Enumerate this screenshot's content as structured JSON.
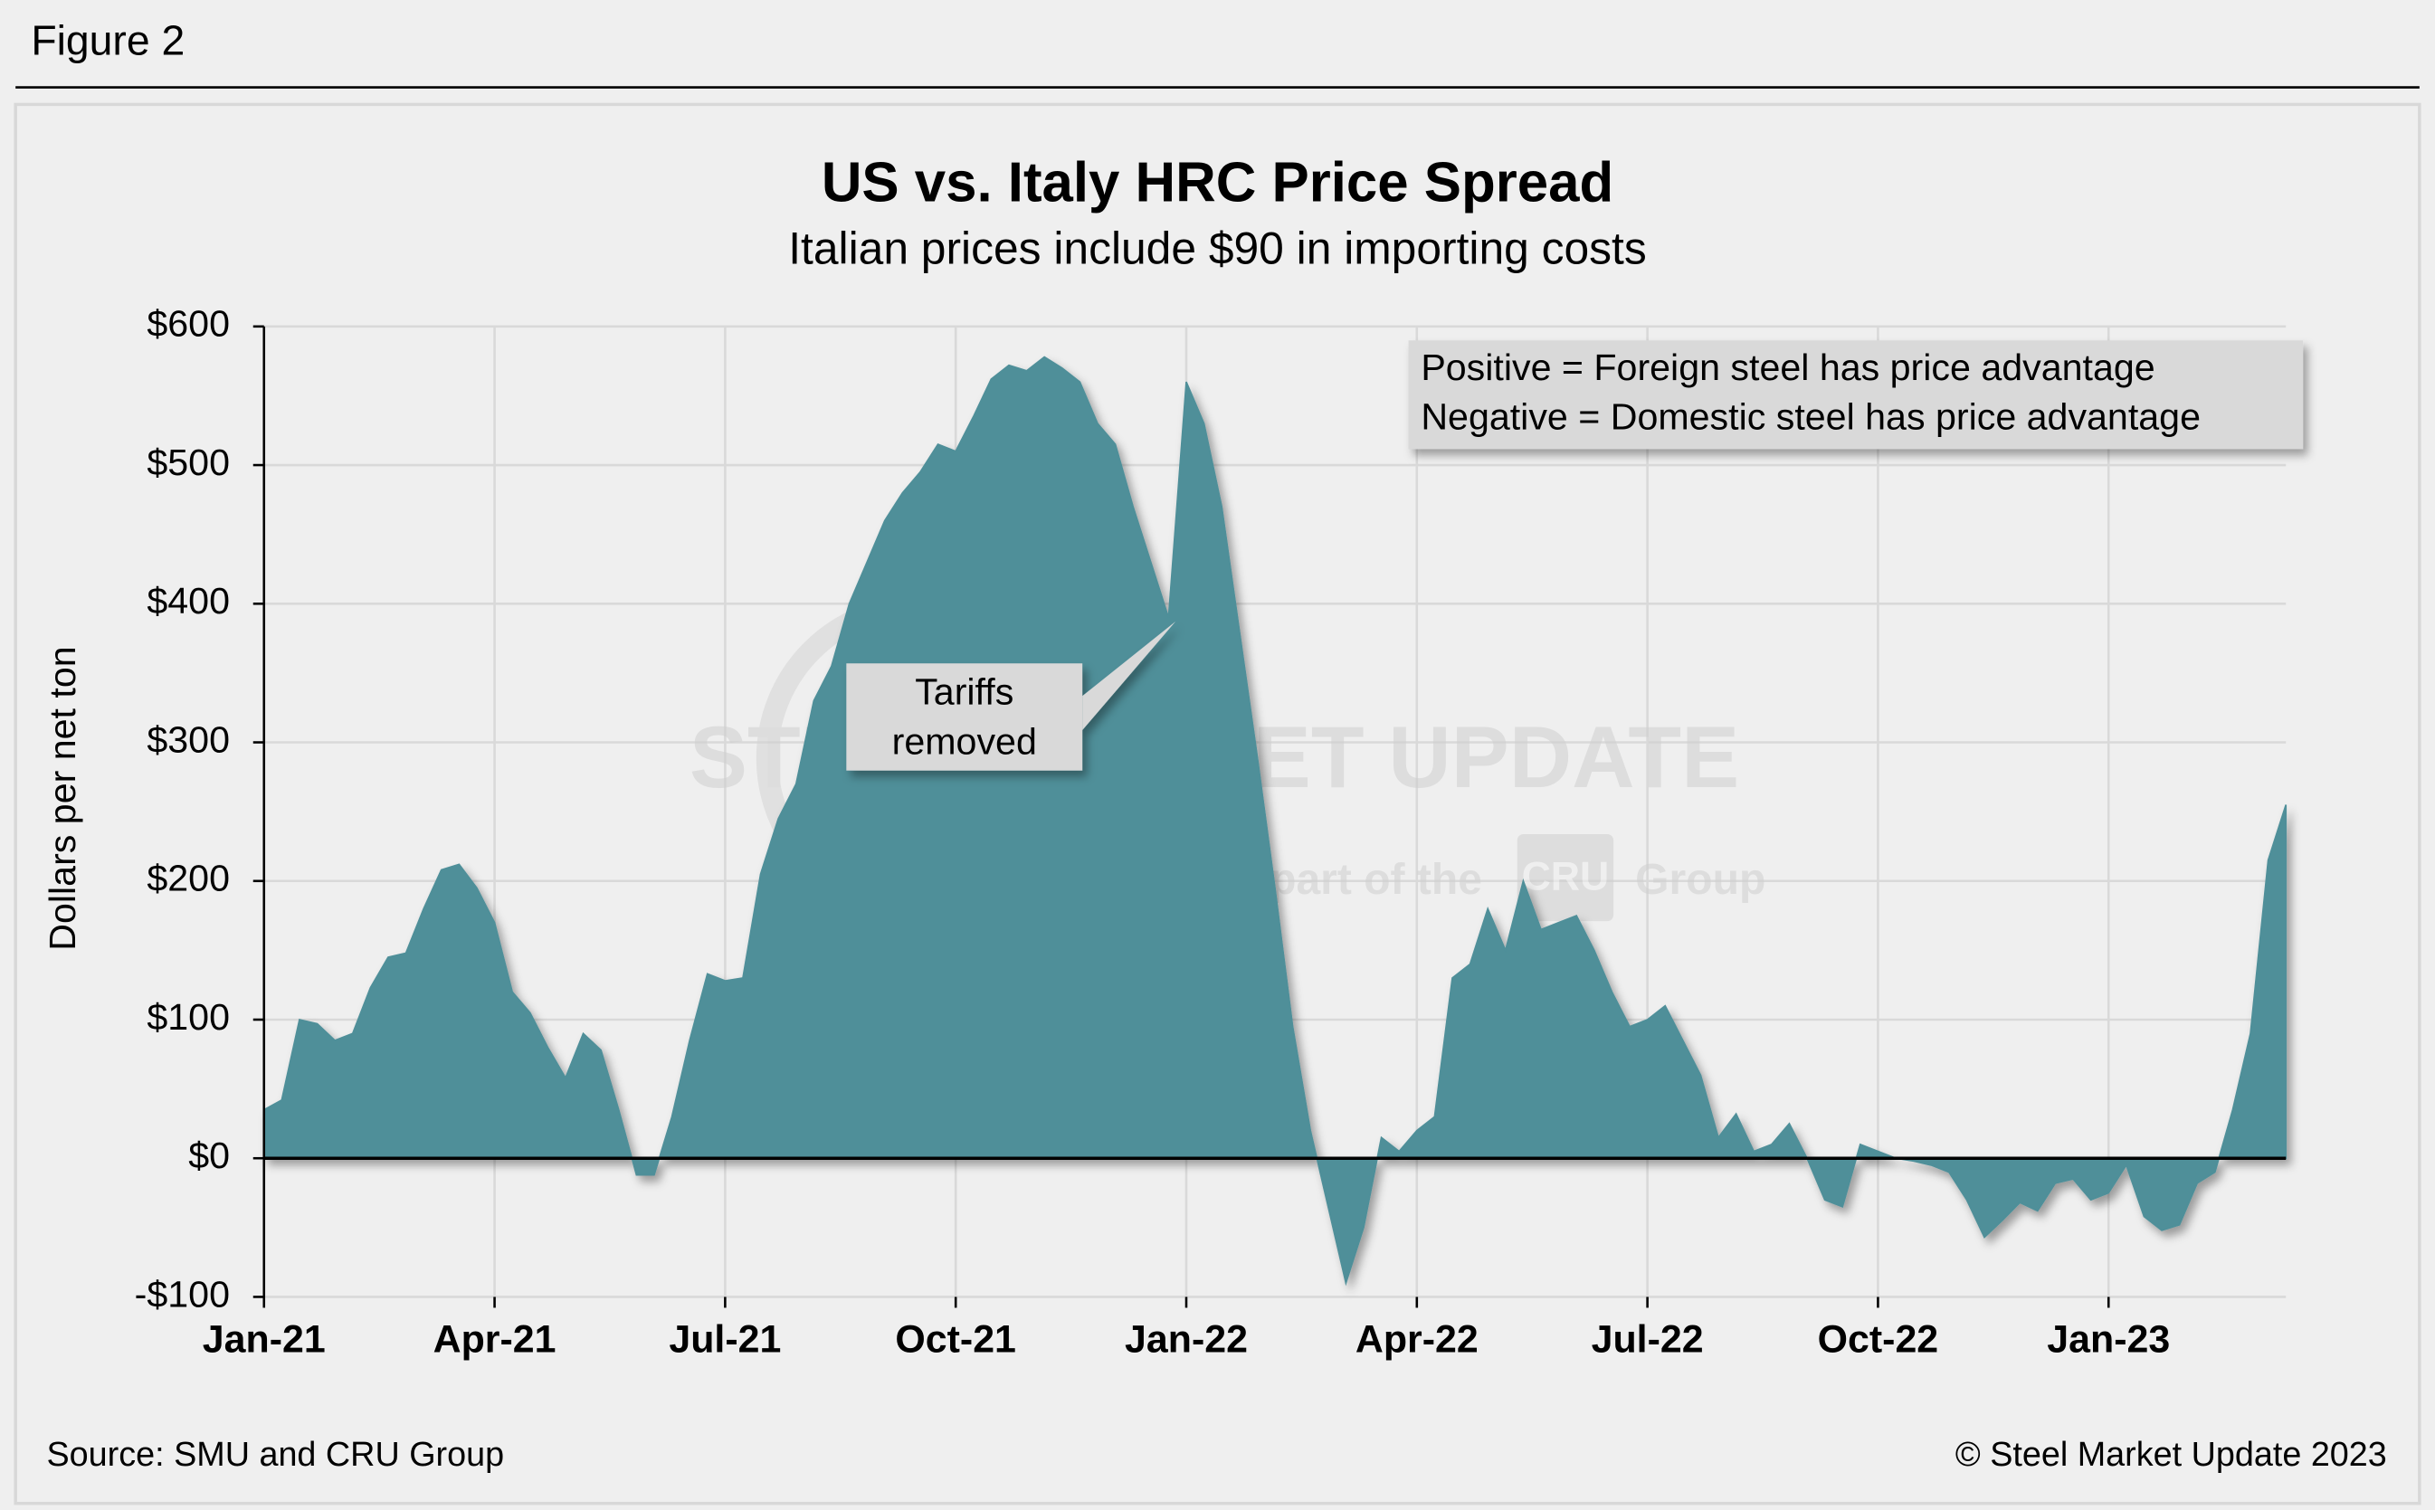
{
  "header": "Figure 2",
  "chart_data": {
    "type": "area",
    "title": "US vs. Italy HRC Price Spread",
    "subtitle": "Italian prices include $90 in importing costs",
    "y_label": "Dollars per net ton",
    "color": "#4f8f99",
    "grid": true,
    "ylim": [
      -100,
      600
    ],
    "yticks": [
      {
        "value": -100,
        "label": "-$100"
      },
      {
        "value": 0,
        "label": "$0"
      },
      {
        "value": 100,
        "label": "$100"
      },
      {
        "value": 200,
        "label": "$200"
      },
      {
        "value": 300,
        "label": "$300"
      },
      {
        "value": 400,
        "label": "$400"
      },
      {
        "value": 500,
        "label": "$500"
      },
      {
        "value": 600,
        "label": "$600"
      }
    ],
    "categories": [
      "Jan-21",
      null,
      null,
      null,
      null,
      null,
      null,
      null,
      null,
      null,
      null,
      null,
      null,
      "Apr-21",
      null,
      null,
      null,
      null,
      null,
      null,
      null,
      null,
      null,
      null,
      null,
      null,
      "Jul-21",
      null,
      null,
      null,
      null,
      null,
      null,
      null,
      null,
      null,
      null,
      null,
      null,
      "Oct-21",
      null,
      null,
      null,
      null,
      null,
      null,
      null,
      null,
      null,
      null,
      null,
      null,
      "Jan-22",
      null,
      null,
      null,
      null,
      null,
      null,
      null,
      null,
      null,
      null,
      null,
      null,
      "Apr-22",
      null,
      null,
      null,
      null,
      null,
      null,
      null,
      null,
      null,
      null,
      null,
      null,
      "Jul-22",
      null,
      null,
      null,
      null,
      null,
      null,
      null,
      null,
      null,
      null,
      null,
      null,
      "Oct-22",
      null,
      null,
      null,
      null,
      null,
      null,
      null,
      null,
      null,
      null,
      null,
      null,
      "Jan-23",
      null,
      null,
      null,
      null,
      null,
      null,
      null,
      null,
      null,
      null
    ],
    "values": [
      35,
      42,
      100,
      97,
      85,
      90,
      123,
      145,
      148,
      180,
      208,
      212,
      195,
      170,
      120,
      105,
      80,
      58,
      90,
      78,
      35,
      -12,
      -12,
      30,
      85,
      133,
      128,
      130,
      205,
      245,
      270,
      330,
      355,
      400,
      430,
      460,
      480,
      495,
      515,
      510,
      535,
      562,
      572,
      568,
      578,
      570,
      560,
      530,
      515,
      470,
      430,
      390,
      560,
      530,
      470,
      380,
      290,
      195,
      95,
      20,
      -35,
      -90,
      -50,
      15,
      5,
      20,
      30,
      130,
      140,
      180,
      150,
      200,
      165,
      170,
      175,
      150,
      120,
      95,
      100,
      110,
      85,
      60,
      15,
      32,
      5,
      10,
      25,
      0,
      -30,
      -35,
      10,
      5,
      0,
      -2,
      -5,
      -10,
      -30,
      -57,
      -45,
      -32,
      -38,
      -18,
      -15,
      -30,
      -25,
      -5,
      -42,
      -52,
      -48,
      -18,
      -10,
      35,
      90,
      215,
      255
    ],
    "legend_note": [
      "Positive = Foreign steel has price advantage",
      "Negative = Domestic steel has price advantage"
    ],
    "annotation": [
      "Tariffs",
      "removed"
    ],
    "watermark": [
      "STEEL MARKET UPDATE",
      "part of the",
      "CRU",
      "Group"
    ],
    "source": "Source: SMU and CRU Group",
    "copyright": "© Steel Market Update 2023"
  }
}
